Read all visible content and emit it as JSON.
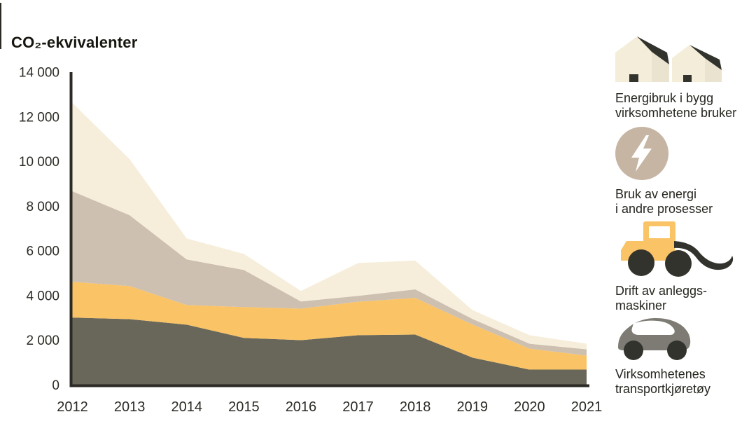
{
  "title": "CO₂-ekvivalenter",
  "chart_data": {
    "type": "area",
    "stacked": true,
    "title": "CO₂-ekvivalenter",
    "x": [
      2012,
      2013,
      2014,
      2015,
      2016,
      2017,
      2018,
      2019,
      2020,
      2021
    ],
    "series": [
      {
        "name": "Virksomhetenes transportkjøretøy",
        "color": "#696759",
        "values": [
          3050,
          2980,
          2730,
          2140,
          2040,
          2260,
          2290,
          1260,
          720,
          720
        ]
      },
      {
        "name": "Drift av anleggsmaskiner",
        "color": "#f9c366",
        "values": [
          1600,
          1480,
          880,
          1380,
          1410,
          1500,
          1640,
          1480,
          940,
          630
        ]
      },
      {
        "name": "Bruk av energi i andre prosesser",
        "color": "#cec0b1",
        "values": [
          4050,
          3170,
          2040,
          1660,
          320,
          260,
          380,
          250,
          220,
          280
        ]
      },
      {
        "name": "Energibruk i bygg virksomhetene bruker",
        "color": "#f6eedb",
        "values": [
          3950,
          2510,
          940,
          720,
          470,
          1470,
          1290,
          400,
          380,
          250
        ]
      }
    ],
    "stack_order": "bottom-to-top",
    "ylim": [
      0,
      14000
    ],
    "y_tick_step": 2000,
    "y_tick_labels": [
      "0",
      "2 000",
      "4 000",
      "6 000",
      "8 000",
      "10 000",
      "12 000",
      "14 000"
    ],
    "x_tick_labels": [
      "2012",
      "2013",
      "2014",
      "2015",
      "2016",
      "2017",
      "2018",
      "2019",
      "2020",
      "2021"
    ],
    "axis_color": "#2b2a25",
    "label_color": "#2b2a25",
    "grid": false,
    "legend_position": "right"
  },
  "legend": {
    "items": [
      {
        "id": "energibruk-bygg",
        "icon": "houses-icon",
        "color": "#f6eedb",
        "lines": [
          "Energibruk i bygg",
          "virksomhetene bruker"
        ]
      },
      {
        "id": "energi-andre-prosesser",
        "icon": "lightning-icon",
        "color": "#cec0b1",
        "lines": [
          "Bruk av energi",
          "i andre prosesser"
        ]
      },
      {
        "id": "anleggsmaskiner",
        "icon": "wheel-loader-icon",
        "color": "#f9c366",
        "lines": [
          "Drift av anleggs-",
          "maskiner"
        ]
      },
      {
        "id": "transportkjoretoy",
        "icon": "car-icon",
        "color": "#696759",
        "lines": [
          "Virksomhetenes",
          "transportkjøretøy"
        ]
      }
    ],
    "icon_dark": "#33332d",
    "house_front": "#f3edda",
    "house_side": "#e9e3d0",
    "circle_fill": "#c7b5a4",
    "car_body": "#7d7b73"
  }
}
